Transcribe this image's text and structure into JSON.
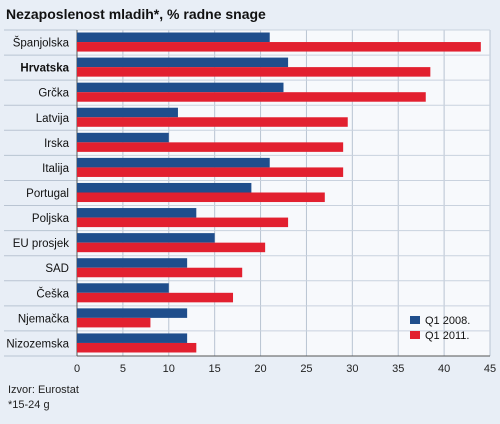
{
  "chart_data": {
    "type": "bar",
    "orientation": "horizontal",
    "title": "Nezaposlenost mladih*, % radne snage",
    "categories": [
      "Španjolska",
      "Hrvatska",
      "Grčka",
      "Latvija",
      "Irska",
      "Italija",
      "Portugal",
      "Poljska",
      "EU prosjek",
      "SAD",
      "Češka",
      "Njemačka",
      "Nizozemska"
    ],
    "highlight_category": "Hrvatska",
    "series": [
      {
        "name": "Q1 2008.",
        "color": "#1f4e8c",
        "values": [
          21,
          23,
          22.5,
          11,
          10,
          21,
          19,
          13,
          15,
          12,
          10,
          12,
          12
        ]
      },
      {
        "name": "Q1 2011.",
        "color": "#e2202f",
        "values": [
          44,
          38.5,
          38,
          29.5,
          29,
          29,
          27,
          23,
          20.5,
          18,
          17,
          8,
          13
        ]
      }
    ],
    "xlim": [
      0,
      45
    ],
    "xticks": [
      0,
      5,
      10,
      15,
      20,
      25,
      30,
      35,
      40,
      45
    ],
    "grid": true,
    "legend_position": "bottom-right",
    "source_lines": [
      "Izvor: Eurostat",
      "*15-24 g"
    ]
  }
}
